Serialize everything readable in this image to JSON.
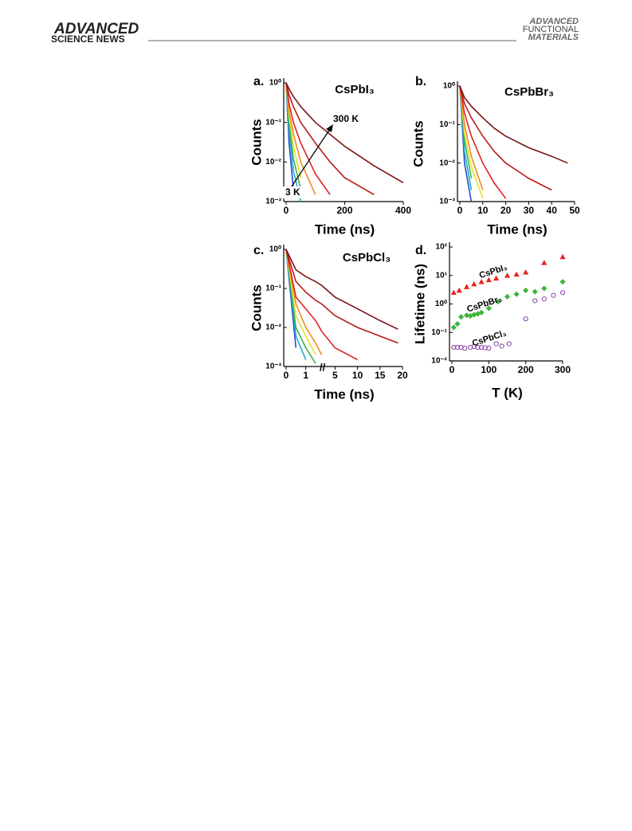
{
  "header": {
    "logo_left": "ADVANCED",
    "subtitle_left": "SCIENCE NEWS",
    "logo_right": [
      "ADVANCED",
      "FUNCTIONAL",
      "MATERIALS"
    ]
  },
  "chart_data": [
    {
      "type": "decay",
      "panel_label": "a.",
      "title": "CsPbI₃",
      "xlabel": "Time (ns)",
      "ylabel": "Counts",
      "log_y": true,
      "xlim": [
        0,
        400
      ],
      "xticks": [
        0,
        200,
        400
      ],
      "ylim": [
        0.001,
        1
      ],
      "yticks": [
        {
          "value": 1,
          "label": "10⁰"
        },
        {
          "value": 0.1,
          "label": "10⁻¹"
        },
        {
          "value": 0.01,
          "label": "10⁻²"
        },
        {
          "value": 0.001,
          "label": "10⁻³"
        }
      ],
      "x": [
        0,
        10,
        25,
        50,
        100,
        150,
        200,
        300,
        400
      ],
      "series": [
        {
          "color": "#2a4cc8",
          "values": [
            1,
            0.03,
            0.002,
            null,
            null,
            null,
            null,
            null,
            null
          ]
        },
        {
          "color": "#22a6d6",
          "values": [
            1,
            0.06,
            0.006,
            0.001,
            null,
            null,
            null,
            null,
            null
          ]
        },
        {
          "color": "#3cb44a",
          "values": [
            1,
            0.1,
            0.012,
            0.002,
            null,
            null,
            null,
            null,
            null
          ]
        },
        {
          "color": "#e6e22a",
          "values": [
            1,
            0.15,
            0.025,
            0.004,
            null,
            null,
            null,
            null,
            null
          ]
        },
        {
          "color": "#f08a24",
          "values": [
            1,
            0.2,
            0.05,
            0.01,
            0.0015,
            null,
            null,
            null,
            null
          ]
        },
        {
          "color": "#e02222",
          "values": [
            1,
            0.3,
            0.1,
            0.03,
            0.005,
            0.0015,
            null,
            null,
            null
          ]
        },
        {
          "color": "#b81c1c",
          "values": [
            1,
            0.5,
            0.25,
            0.1,
            0.03,
            0.01,
            0.004,
            0.0015,
            null
          ]
        },
        {
          "color": "#7a1414",
          "values": [
            1,
            0.7,
            0.45,
            0.25,
            0.1,
            0.05,
            0.025,
            0.008,
            0.003
          ]
        }
      ],
      "annotations": [
        "300 K",
        "3 K"
      ]
    },
    {
      "type": "decay",
      "panel_label": "b.",
      "title": "CsPbBr₃",
      "xlabel": "Time (ns)",
      "ylabel": "Counts",
      "log_y": true,
      "xlim": [
        0,
        50
      ],
      "xticks": [
        0,
        10,
        20,
        30,
        40,
        50
      ],
      "ylim": [
        0.001,
        1
      ],
      "yticks": [
        {
          "value": 1,
          "label": "10⁰"
        },
        {
          "value": 0.1,
          "label": "10⁻¹"
        },
        {
          "value": 0.01,
          "label": "10⁻²"
        },
        {
          "value": 0.001,
          "label": "10⁻³"
        }
      ],
      "x": [
        0,
        2,
        5,
        10,
        15,
        20,
        30,
        40,
        47
      ],
      "series": [
        {
          "color": "#2a4cc8",
          "values": [
            1,
            0.01,
            0.001,
            null,
            null,
            null,
            null,
            null,
            null
          ]
        },
        {
          "color": "#22a6d6",
          "values": [
            1,
            0.02,
            0.002,
            null,
            null,
            null,
            null,
            null,
            null
          ]
        },
        {
          "color": "#3cb44a",
          "values": [
            1,
            0.04,
            0.004,
            null,
            null,
            null,
            null,
            null,
            null
          ]
        },
        {
          "color": "#e6e22a",
          "values": [
            1,
            0.06,
            0.008,
            0.0012,
            null,
            null,
            null,
            null,
            null
          ]
        },
        {
          "color": "#f08a24",
          "values": [
            1,
            0.1,
            0.015,
            0.002,
            null,
            null,
            null,
            null,
            null
          ]
        },
        {
          "color": "#e02222",
          "values": [
            1,
            0.2,
            0.05,
            0.01,
            0.003,
            0.0012,
            null,
            null,
            null
          ]
        },
        {
          "color": "#b81c1c",
          "values": [
            1,
            0.35,
            0.15,
            0.05,
            0.02,
            0.01,
            0.004,
            0.002,
            null
          ]
        },
        {
          "color": "#7a1414",
          "values": [
            1,
            0.5,
            0.3,
            0.15,
            0.08,
            0.05,
            0.025,
            0.015,
            0.01
          ]
        }
      ]
    },
    {
      "type": "decay",
      "panel_label": "c.",
      "title": "CsPbCl₃",
      "xlabel": "Time (ns)",
      "ylabel": "Counts",
      "log_y": true,
      "xlim": [
        0,
        20
      ],
      "x_segments": [
        [
          0,
          1.6
        ],
        [
          2,
          20
        ]
      ],
      "xticks": [
        0,
        1,
        5,
        10,
        15,
        20
      ],
      "ylim": [
        0.001,
        1
      ],
      "yticks": [
        {
          "value": 1,
          "label": "10⁰"
        },
        {
          "value": 0.1,
          "label": "10⁻¹"
        },
        {
          "value": 0.01,
          "label": "10⁻²"
        },
        {
          "value": 0.001,
          "label": "10⁻³"
        }
      ],
      "x": [
        0,
        0.5,
        1,
        1.5,
        2,
        5,
        10,
        15,
        19
      ],
      "series": [
        {
          "color": "#2a4cc8",
          "values": [
            1,
            0.003,
            null,
            null,
            null,
            null,
            null,
            null,
            null
          ]
        },
        {
          "color": "#22a6d6",
          "values": [
            1,
            0.006,
            0.0015,
            null,
            null,
            null,
            null,
            null,
            null
          ]
        },
        {
          "color": "#3cb44a",
          "values": [
            1,
            0.01,
            0.003,
            0.0012,
            null,
            null,
            null,
            null,
            null
          ]
        },
        {
          "color": "#e6e22a",
          "values": [
            1,
            0.02,
            0.006,
            0.002,
            null,
            null,
            null,
            null,
            null
          ]
        },
        {
          "color": "#f08a24",
          "values": [
            1,
            0.04,
            0.01,
            0.004,
            0.002,
            null,
            null,
            null,
            null
          ]
        },
        {
          "color": "#e02222",
          "values": [
            1,
            0.06,
            0.03,
            0.015,
            0.008,
            0.003,
            0.0015,
            null,
            null
          ]
        },
        {
          "color": "#b81c1c",
          "values": [
            1,
            0.15,
            0.08,
            0.05,
            0.04,
            0.02,
            0.01,
            0.006,
            0.004
          ]
        },
        {
          "color": "#7a1414",
          "values": [
            1,
            0.3,
            0.2,
            0.15,
            0.12,
            0.06,
            0.03,
            0.015,
            0.009
          ]
        }
      ]
    },
    {
      "type": "scatter",
      "panel_label": "d.",
      "xlabel": "T (K)",
      "ylabel": "Lifetime (ns)",
      "log_y": true,
      "xlim": [
        0,
        300
      ],
      "xticks": [
        0,
        100,
        200,
        300
      ],
      "ylim": [
        0.01,
        100
      ],
      "yticks": [
        {
          "value": 100,
          "label": "10²"
        },
        {
          "value": 10,
          "label": "10¹"
        },
        {
          "value": 1,
          "label": "10⁰"
        },
        {
          "value": 0.1,
          "label": "10⁻¹"
        },
        {
          "value": 0.01,
          "label": "10⁻²"
        }
      ],
      "series": [
        {
          "name": "CsPbI₃",
          "color": "#e8231e",
          "marker": "triangle",
          "x": [
            5,
            20,
            40,
            60,
            80,
            100,
            120,
            150,
            175,
            200,
            250,
            300
          ],
          "values": [
            2.5,
            3,
            4,
            5,
            6,
            7,
            8,
            10,
            11,
            13,
            28,
            45
          ]
        },
        {
          "name": "CsPbBr₃",
          "color": "#3db53d",
          "marker": "diamond",
          "x": [
            5,
            15,
            25,
            40,
            50,
            60,
            70,
            80,
            100,
            125,
            150,
            175,
            200,
            225,
            250,
            300
          ],
          "values": [
            0.15,
            0.2,
            0.35,
            0.4,
            0.38,
            0.42,
            0.45,
            0.5,
            0.7,
            1.2,
            1.8,
            2.2,
            3,
            2.7,
            3.5,
            6
          ]
        },
        {
          "name": "CsPbCl₃",
          "color": "#8a3fa8",
          "marker": "circle",
          "x": [
            5,
            15,
            25,
            35,
            50,
            60,
            70,
            80,
            90,
            100,
            120,
            135,
            155,
            200,
            225,
            250,
            275,
            300
          ],
          "values": [
            0.03,
            0.03,
            0.03,
            0.028,
            0.03,
            0.032,
            0.03,
            0.03,
            0.029,
            0.028,
            0.04,
            0.033,
            0.04,
            0.3,
            1.3,
            1.5,
            2,
            2.5
          ]
        }
      ]
    }
  ]
}
